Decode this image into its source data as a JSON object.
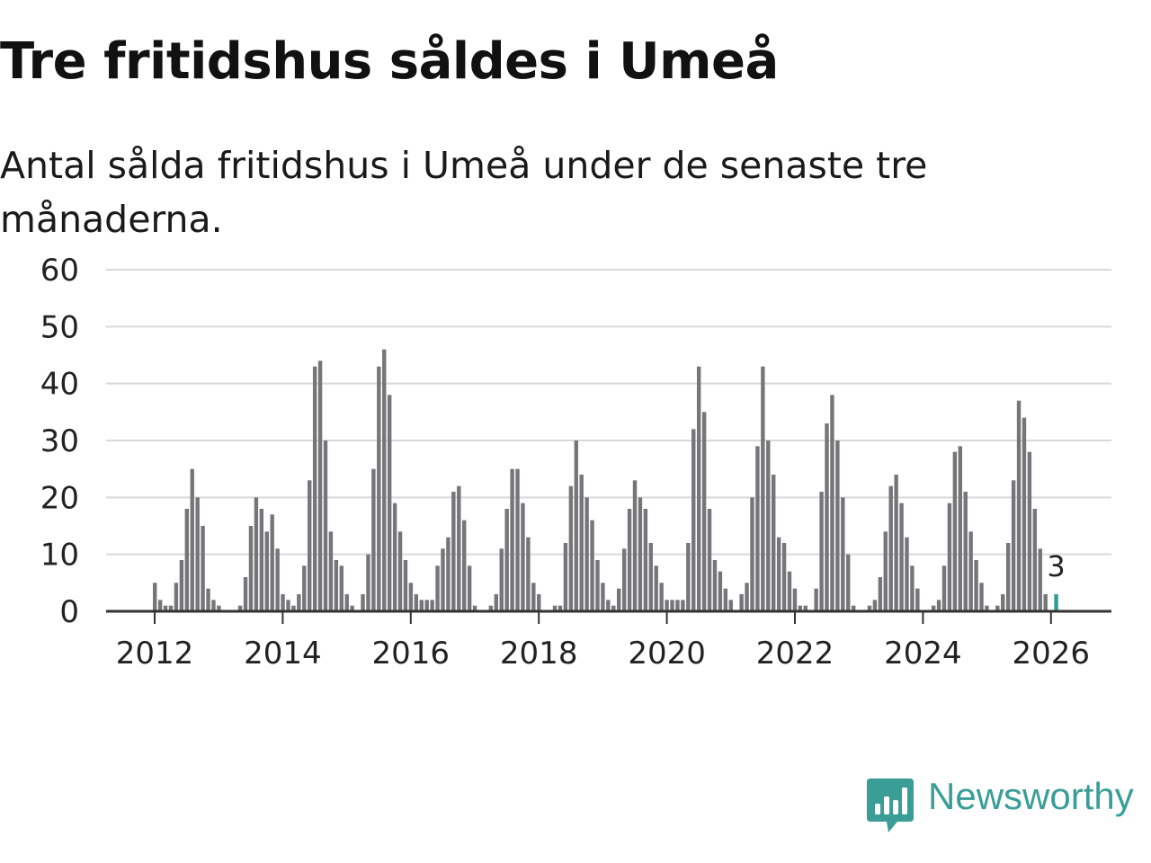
{
  "title": "Tre fritidshus såldes i Umeå",
  "subtitle": "Antal sålda fritidshus i Umeå under de senaste tre månaderna.",
  "brand": {
    "name": "Newsworthy",
    "icon": "newsworthy-logo-icon",
    "color": "#3a9e97"
  },
  "colors": {
    "bar": "#76767a",
    "highlight": "#2a9d95",
    "grid": "#d9d9d9",
    "axis": "#333333"
  },
  "chart_data": {
    "type": "bar",
    "title": "Tre fritidshus såldes i Umeå",
    "subtitle": "Antal sålda fritidshus i Umeå under de senaste tre månaderna.",
    "xlabel": "",
    "ylabel": "",
    "x_start": 2011.42,
    "x_step": 0.0833,
    "ylim": [
      0,
      60
    ],
    "yticks": [
      0,
      10,
      20,
      30,
      40,
      50,
      60
    ],
    "xticks": [
      2012,
      2014,
      2016,
      2018,
      2020,
      2022,
      2024,
      2026
    ],
    "grid": true,
    "values": [
      0,
      0,
      0,
      0,
      0,
      0,
      0,
      5,
      2,
      1,
      1,
      5,
      9,
      18,
      25,
      20,
      15,
      4,
      2,
      1,
      0,
      0,
      0,
      1,
      6,
      15,
      20,
      18,
      14,
      17,
      11,
      3,
      2,
      1,
      3,
      8,
      23,
      43,
      44,
      30,
      14,
      9,
      8,
      3,
      1,
      0,
      3,
      10,
      25,
      43,
      46,
      38,
      19,
      14,
      9,
      5,
      3,
      2,
      2,
      2,
      8,
      11,
      13,
      21,
      22,
      16,
      8,
      1,
      0,
      0,
      1,
      3,
      11,
      18,
      25,
      25,
      19,
      13,
      5,
      3,
      0,
      0,
      1,
      1,
      12,
      22,
      30,
      24,
      20,
      16,
      9,
      5,
      2,
      1,
      4,
      11,
      18,
      23,
      20,
      18,
      12,
      8,
      5,
      2,
      2,
      2,
      2,
      12,
      32,
      43,
      35,
      18,
      9,
      7,
      4,
      2,
      0,
      3,
      5,
      20,
      29,
      43,
      30,
      24,
      13,
      12,
      7,
      4,
      1,
      1,
      0,
      4,
      21,
      33,
      38,
      30,
      20,
      10,
      1,
      0,
      0,
      1,
      2,
      6,
      14,
      22,
      24,
      19,
      13,
      8,
      4,
      0,
      0,
      1,
      2,
      8,
      19,
      28,
      29,
      21,
      14,
      9,
      5,
      1,
      0,
      1,
      3,
      12,
      23,
      37,
      34,
      28,
      18,
      11,
      3,
      0,
      3
    ],
    "highlight_last": true,
    "annotation": {
      "text": "3",
      "target": "last"
    }
  }
}
